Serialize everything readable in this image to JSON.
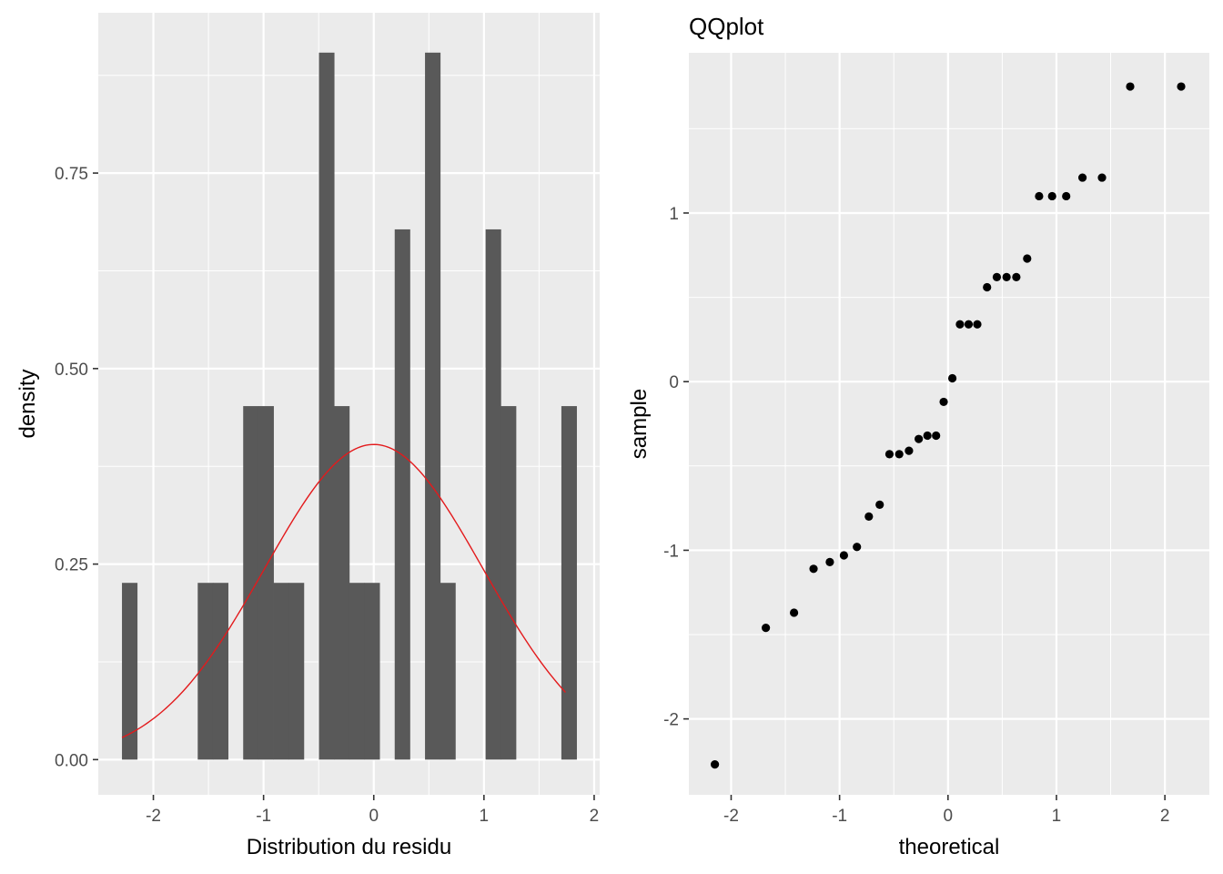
{
  "colors": {
    "panel_background": "#ebebeb",
    "grid_major": "#ffffff",
    "bar_fill": "#595959",
    "density_line": "#e31a1c",
    "point": "#000000",
    "tick_text": "#4d4d4d"
  },
  "chart_data": [
    {
      "id": "histogram",
      "type": "bar",
      "title": "",
      "xlabel": "Distribution du residu",
      "ylabel": "density",
      "xlim": [
        -2.5,
        2.05
      ],
      "ylim": [
        -0.045,
        0.955
      ],
      "x_ticks": [
        -2,
        -1,
        0,
        1,
        2
      ],
      "x_tick_labels": [
        "-2",
        "-1",
        "0",
        "1",
        "2"
      ],
      "y_ticks": [
        0.0,
        0.25,
        0.5,
        0.75
      ],
      "y_tick_labels": [
        "0.00",
        "0.25",
        "0.50",
        "0.75"
      ],
      "grid": true,
      "bin_width": 0.1375,
      "bins": [
        {
          "x0": -2.285,
          "x1": -2.1475,
          "density": 0.226
        },
        {
          "x0": -1.5975,
          "x1": -1.46,
          "density": 0.226
        },
        {
          "x0": -1.46,
          "x1": -1.3225,
          "density": 0.226
        },
        {
          "x0": -1.185,
          "x1": -1.0475,
          "density": 0.452
        },
        {
          "x0": -1.0475,
          "x1": -0.91,
          "density": 0.452
        },
        {
          "x0": -0.91,
          "x1": -0.7725,
          "density": 0.226
        },
        {
          "x0": -0.7725,
          "x1": -0.635,
          "density": 0.226
        },
        {
          "x0": -0.4975,
          "x1": -0.36,
          "density": 0.904
        },
        {
          "x0": -0.36,
          "x1": -0.2225,
          "density": 0.452
        },
        {
          "x0": -0.2225,
          "x1": -0.085,
          "density": 0.226
        },
        {
          "x0": -0.085,
          "x1": 0.0525,
          "density": 0.226
        },
        {
          "x0": 0.19,
          "x1": 0.3275,
          "density": 0.678
        },
        {
          "x0": 0.465,
          "x1": 0.6025,
          "density": 0.904
        },
        {
          "x0": 0.6025,
          "x1": 0.74,
          "density": 0.226
        },
        {
          "x0": 1.015,
          "x1": 1.1525,
          "density": 0.678
        },
        {
          "x0": 1.1525,
          "x1": 1.29,
          "density": 0.452
        },
        {
          "x0": 1.7025,
          "x1": 1.84,
          "density": 0.452
        }
      ],
      "density_curve": {
        "type": "normal",
        "mean": 0.0,
        "sd": 0.99,
        "x_range": [
          -2.285,
          1.74
        ]
      }
    },
    {
      "id": "qqplot",
      "type": "scatter",
      "title": "QQplot",
      "xlabel": "theoretical",
      "ylabel": "sample",
      "xlim": [
        -2.39,
        2.41
      ],
      "ylim": [
        -2.45,
        1.95
      ],
      "x_ticks": [
        -2,
        -1,
        0,
        1,
        2
      ],
      "x_tick_labels": [
        "-2",
        "-1",
        "0",
        "1",
        "2"
      ],
      "y_ticks": [
        -2,
        -1,
        0,
        1
      ],
      "y_tick_labels": [
        "-2",
        "-1",
        "0",
        "1"
      ],
      "grid": true,
      "points": [
        {
          "x": -2.15,
          "y": -2.27
        },
        {
          "x": -1.68,
          "y": -1.46
        },
        {
          "x": -1.42,
          "y": -1.37
        },
        {
          "x": -1.24,
          "y": -1.11
        },
        {
          "x": -1.09,
          "y": -1.07
        },
        {
          "x": -0.96,
          "y": -1.03
        },
        {
          "x": -0.84,
          "y": -0.98
        },
        {
          "x": -0.73,
          "y": -0.8
        },
        {
          "x": -0.63,
          "y": -0.73
        },
        {
          "x": -0.54,
          "y": -0.43
        },
        {
          "x": -0.45,
          "y": -0.43
        },
        {
          "x": -0.36,
          "y": -0.41
        },
        {
          "x": -0.27,
          "y": -0.34
        },
        {
          "x": -0.19,
          "y": -0.32
        },
        {
          "x": -0.11,
          "y": -0.32
        },
        {
          "x": -0.04,
          "y": -0.12
        },
        {
          "x": 0.04,
          "y": 0.02
        },
        {
          "x": 0.11,
          "y": 0.34
        },
        {
          "x": 0.19,
          "y": 0.34
        },
        {
          "x": 0.27,
          "y": 0.34
        },
        {
          "x": 0.36,
          "y": 0.56
        },
        {
          "x": 0.45,
          "y": 0.62
        },
        {
          "x": 0.54,
          "y": 0.62
        },
        {
          "x": 0.63,
          "y": 0.62
        },
        {
          "x": 0.73,
          "y": 0.73
        },
        {
          "x": 0.84,
          "y": 1.1
        },
        {
          "x": 0.96,
          "y": 1.1
        },
        {
          "x": 1.09,
          "y": 1.1
        },
        {
          "x": 1.24,
          "y": 1.21
        },
        {
          "x": 1.42,
          "y": 1.21
        },
        {
          "x": 1.68,
          "y": 1.75
        },
        {
          "x": 2.15,
          "y": 1.75
        }
      ]
    }
  ]
}
